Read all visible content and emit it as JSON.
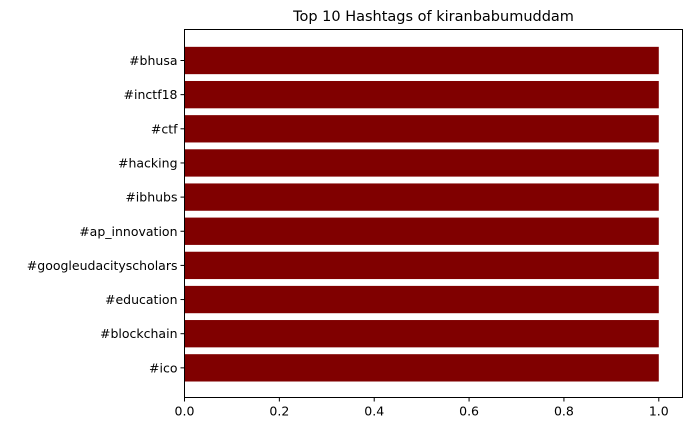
{
  "chart_data": {
    "type": "bar",
    "orientation": "horizontal",
    "title": "Top 10 Hashtags of kiranbabumuddam",
    "xlabel": "",
    "ylabel": "",
    "categories": [
      "#bhusa",
      "#inctf18",
      "#ctf",
      "#hacking",
      "#ibhubs",
      "#ap_innovation",
      "#googleudacityscholars",
      "#education",
      "#blockchain",
      "#ico"
    ],
    "values": [
      1,
      1,
      1,
      1,
      1,
      1,
      1,
      1,
      1,
      1
    ],
    "xlim": [
      0,
      1.05
    ],
    "xticks": [
      "0.0",
      "0.2",
      "0.4",
      "0.6",
      "0.8",
      "1.0"
    ],
    "bar_color": "#800000",
    "grid": false,
    "legend": "none"
  }
}
